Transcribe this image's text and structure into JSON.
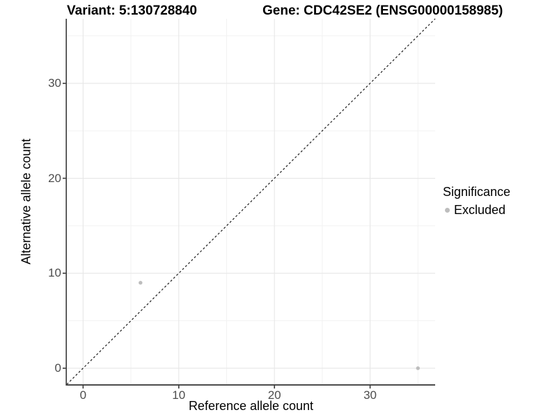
{
  "header": {
    "variant_title": "Variant: 5:130728840",
    "gene_title": "Gene: CDC42SE2 (ENSG00000158985)"
  },
  "chart_data": {
    "type": "scatter",
    "xlabel": "Reference allele count",
    "ylabel": "Alternative allele count",
    "xlim": [
      -1.7,
      36.8
    ],
    "ylim": [
      -1.7,
      36.8
    ],
    "x_major_ticks": [
      0,
      10,
      20,
      30
    ],
    "y_major_ticks": [
      0,
      10,
      20,
      30
    ],
    "x_minor_gridlines": [
      5,
      15,
      25,
      35
    ],
    "y_minor_gridlines": [
      5,
      15,
      25,
      35
    ],
    "grid": "on",
    "identity_line": {
      "equation": "y = x",
      "style": "dashed",
      "color": "#1b1b1b"
    },
    "series": [
      {
        "name": "Excluded",
        "color": "#bdbdbd",
        "points": [
          [
            6,
            9
          ],
          [
            35,
            0
          ]
        ]
      }
    ],
    "legend": {
      "position": "right",
      "title": "Significance",
      "items": [
        {
          "label": "Excluded",
          "color": "#bdbdbd"
        }
      ]
    },
    "colors": {
      "point": "#bdbdbd",
      "axis_line": "#3a3a3a",
      "tick_label": "#4d4d4d",
      "grid_major": "#e7e7e7",
      "grid_minor": "#f2f2f2"
    }
  }
}
